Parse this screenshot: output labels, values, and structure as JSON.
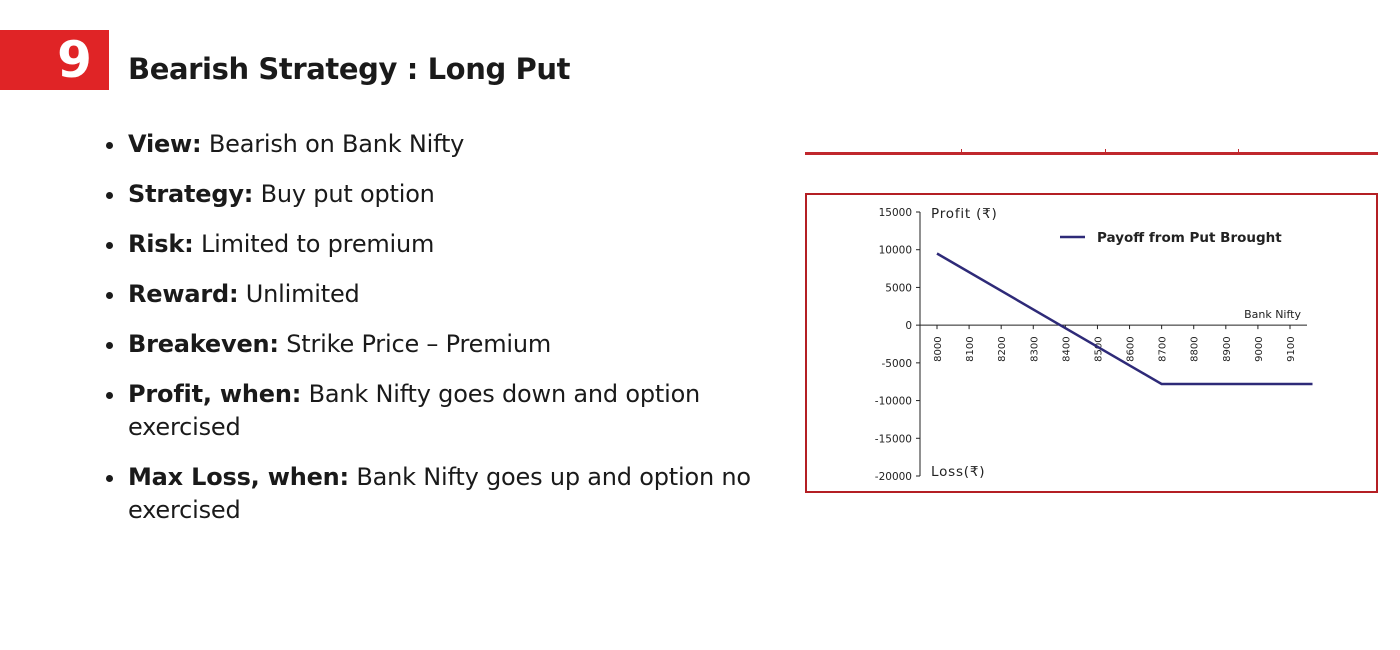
{
  "slide": {
    "number": "9",
    "title": "Bearish Strategy : Long Put"
  },
  "bullets": [
    {
      "label": "View:",
      "text": " Bearish on  Bank Nifty",
      "cont": ""
    },
    {
      "label": "Strategy:",
      "text": " Buy put option",
      "cont": ""
    },
    {
      "label": "Risk:",
      "text": " Limited to premium",
      "cont": ""
    },
    {
      "label": "Reward:",
      "text": " Unlimited",
      "cont": ""
    },
    {
      "label": "Breakeven:",
      "text": " Strike Price – Premium",
      "cont": ""
    },
    {
      "label": "Profit, when:",
      "text": " Bank Nifty  goes down  and option",
      "cont": "exercised"
    },
    {
      "label": "Max Loss, when:",
      "text": " Bank Nifty  goes up and option not",
      "cont": "exercised"
    }
  ],
  "chart_data": {
    "type": "line",
    "title": "",
    "ylabel_top": "Profit (₹)",
    "ylabel_bottom": "Loss(₹)",
    "xlabel": "Bank Nifty",
    "ylim": [
      -20000,
      15000
    ],
    "yticks": [
      15000,
      10000,
      5000,
      0,
      -5000,
      -10000,
      -15000,
      -20000
    ],
    "ytick_labels": [
      "15000",
      "10000",
      "5000",
      "0",
      "-5000",
      "-10000",
      "-15000",
      "-20000"
    ],
    "xlim": [
      7950,
      9170
    ],
    "xticks": [
      8000,
      8100,
      8200,
      8300,
      8400,
      8500,
      8600,
      8700,
      8800,
      8900,
      9000,
      9100
    ],
    "xtick_labels": [
      "8000",
      "8100",
      "8200",
      "8300",
      "8400",
      "8500",
      "8600",
      "8700",
      "8800",
      "8900",
      "9000",
      "9100"
    ],
    "grid": false,
    "legend_position": "top-right",
    "series": [
      {
        "name": "Payoff from Put Brought",
        "color": "#2e2a78",
        "x": [
          8000,
          8700,
          9170
        ],
        "y": [
          9500,
          -7800,
          -7800
        ]
      }
    ]
  },
  "colors": {
    "accent": "#e02426",
    "frame": "#b41f24",
    "series": "#2e2a78"
  }
}
